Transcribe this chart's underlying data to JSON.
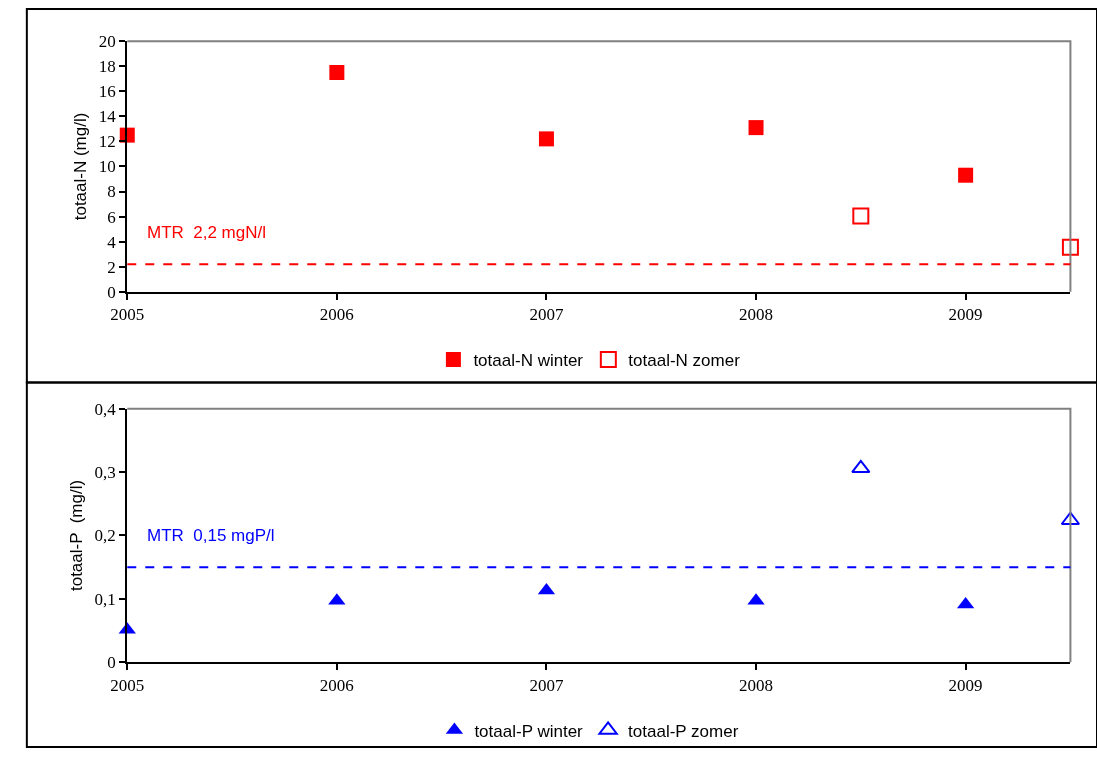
{
  "chart_data": [
    {
      "type": "scatter",
      "ylabel": "totaal-N (mg/l)",
      "xlim": [
        2005,
        2009.5
      ],
      "xticks": [
        2005,
        2006,
        2007,
        2008,
        2009
      ],
      "ylim": [
        0,
        20
      ],
      "yticks": [
        0,
        2,
        4,
        6,
        8,
        10,
        12,
        14,
        16,
        18,
        20
      ],
      "grid": false,
      "legend": "bottom",
      "marker": "square",
      "series": [
        {
          "name": "totaal-N winter",
          "color": "#ff0000",
          "x": [
            2005,
            2006,
            2007,
            2008,
            2009
          ],
          "values": [
            12.5,
            17.5,
            12.2,
            13.1,
            9.3
          ]
        },
        {
          "name": "totaal-N zomer",
          "color": "#ff0000",
          "x": [
            2008.5,
            2009.5
          ],
          "values": [
            6.05,
            3.55
          ]
        }
      ],
      "ref_lines": [
        {
          "axis": "y",
          "value": 2.2,
          "label": "MTR  2,2 mgN/l",
          "color": "#ff0000",
          "line_style": "dashed"
        }
      ]
    },
    {
      "type": "scatter",
      "ylabel": "totaal-P  (mg/l)",
      "xlim": [
        2005,
        2009.5
      ],
      "xticks": [
        2005,
        2006,
        2007,
        2008,
        2009
      ],
      "ylim": [
        0,
        0.4
      ],
      "yticks": [
        0,
        {
          "value": 0.1,
          "label": "0,1"
        },
        {
          "value": 0.2,
          "label": "0,2"
        },
        {
          "value": 0.3,
          "label": "0,3"
        },
        {
          "value": 0.4,
          "label": "0,4"
        }
      ],
      "grid": false,
      "legend": "bottom",
      "marker": "triangle",
      "series": [
        {
          "name": "totaal-P winter",
          "color": "#0000ff",
          "x": [
            2005,
            2006,
            2007,
            2008,
            2009
          ],
          "values": [
            0.051,
            0.097,
            0.113,
            0.097,
            0.091
          ]
        },
        {
          "name": "totaal-P zomer",
          "color": "#0000ff",
          "x": [
            2008.5,
            2009.5
          ],
          "values": [
            0.306,
            0.224
          ]
        }
      ],
      "ref_lines": [
        {
          "axis": "y",
          "value": 0.15,
          "label": "MTR  0,15 mgP/l",
          "color": "#0000ff",
          "line_style": "dashed"
        }
      ]
    }
  ]
}
